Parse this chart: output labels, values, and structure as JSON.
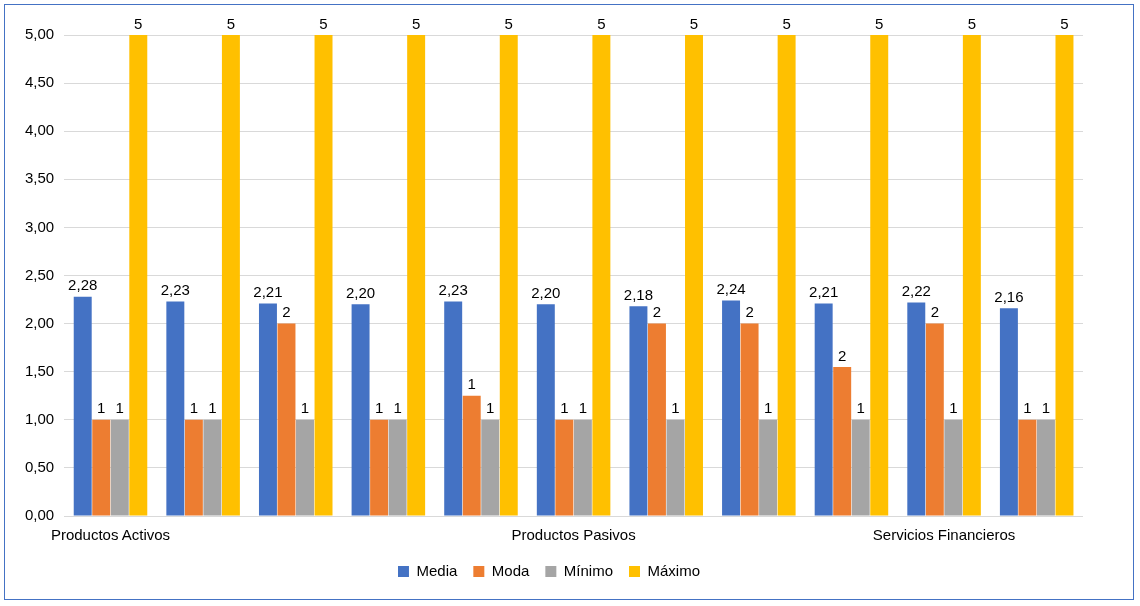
{
  "chart_data": {
    "type": "bar",
    "categories": [
      "Productos Activos",
      null,
      null,
      null,
      null,
      "Productos Pasivos",
      null,
      null,
      null,
      "Servicios Financieros",
      null
    ],
    "series": [
      {
        "name": "Media",
        "color": "#4472c4",
        "values": [
          2.28,
          2.23,
          2.21,
          2.2,
          2.23,
          2.2,
          2.18,
          2.24,
          2.21,
          2.22,
          2.16
        ],
        "value_labels": [
          "2,28",
          "2,23",
          "2,21",
          "2,20",
          "2,23",
          "2,20",
          "2,18",
          "2,24",
          "2,21",
          "2,22",
          "2,16"
        ]
      },
      {
        "name": "Moda",
        "color": "#ed7d31",
        "values": [
          1,
          1,
          2,
          1,
          1.25,
          1,
          2,
          2,
          1.55,
          2,
          1
        ],
        "value_labels": [
          "1",
          "1",
          "2",
          "1",
          "1",
          "1",
          "2",
          "2",
          "2",
          "2",
          "1"
        ]
      },
      {
        "name": "Mínimo",
        "color": "#a5a5a5",
        "values": [
          1,
          1,
          1,
          1,
          1,
          1,
          1,
          1,
          1,
          1,
          1
        ],
        "value_labels": [
          "1",
          "1",
          "1",
          "1",
          "1",
          "1",
          "1",
          "1",
          "1",
          "1",
          "1"
        ]
      },
      {
        "name": "Máximo",
        "color": "#ffc000",
        "values": [
          5,
          5,
          5,
          5,
          5,
          5,
          5,
          5,
          5,
          5,
          5
        ],
        "value_labels": [
          "5",
          "5",
          "5",
          "5",
          "5",
          "5",
          "5",
          "5",
          "5",
          "5",
          "5"
        ]
      }
    ],
    "ylim": [
      0,
      5
    ],
    "yticks": [
      {
        "value": 0,
        "label": "0,00"
      },
      {
        "value": 0.5,
        "label": "0,50"
      },
      {
        "value": 1,
        "label": "1,00"
      },
      {
        "value": 1.5,
        "label": "1,50"
      },
      {
        "value": 2,
        "label": "2,00"
      },
      {
        "value": 2.5,
        "label": "2,50"
      },
      {
        "value": 3,
        "label": "3,00"
      },
      {
        "value": 3.5,
        "label": "3,50"
      },
      {
        "value": 4,
        "label": "4,00"
      },
      {
        "value": 4.5,
        "label": "4,50"
      },
      {
        "value": 5,
        "label": "5,00"
      }
    ],
    "grid": "y",
    "legend": "bottom"
  }
}
